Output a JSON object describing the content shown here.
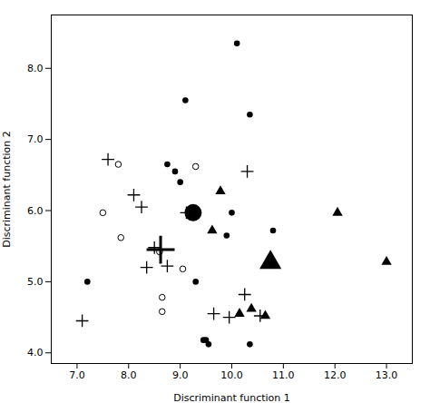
{
  "chart_data": {
    "type": "scatter",
    "xlabel": "Discriminant function 1",
    "ylabel": "Discriminant function 2",
    "xlim": [
      6.5,
      13.5
    ],
    "ylim": [
      3.85,
      8.75
    ],
    "xticks": [
      7,
      8,
      9,
      10,
      11,
      12,
      13
    ],
    "yticks": [
      4,
      5,
      6,
      7,
      8
    ],
    "grid": false,
    "series": [
      {
        "marker": "circle",
        "color": "#000000",
        "x": [
          7.2,
          8.75,
          8.9,
          9.0,
          9.1,
          9.3,
          9.45,
          9.5,
          10.1,
          10.35,
          9.55,
          10.35,
          10.8,
          10.0,
          9.9
        ],
        "values": [
          5.0,
          6.65,
          6.55,
          6.4,
          7.55,
          5.0,
          4.18,
          4.18,
          8.35,
          7.35,
          4.12,
          4.12,
          5.72,
          5.97,
          5.65
        ]
      },
      {
        "marker": "big-circle",
        "color": "#000000",
        "x": [
          9.25
        ],
        "values": [
          5.97
        ]
      },
      {
        "marker": "open-circle",
        "color": "#000000",
        "x": [
          7.8,
          7.5,
          7.85,
          8.6,
          9.3,
          9.05,
          8.65,
          8.65
        ],
        "values": [
          6.65,
          5.97,
          5.62,
          5.42,
          6.62,
          5.18,
          4.78,
          4.58
        ]
      },
      {
        "marker": "plus",
        "color": "#000000",
        "x": [
          7.1,
          7.6,
          8.1,
          8.25,
          8.5,
          8.35,
          8.75,
          9.12,
          9.65,
          9.95,
          10.25,
          10.55,
          10.3
        ],
        "values": [
          4.45,
          6.72,
          6.22,
          6.05,
          5.48,
          5.2,
          5.22,
          5.97,
          4.55,
          4.5,
          4.82,
          4.52,
          6.55
        ]
      },
      {
        "marker": "bold-plus",
        "color": "#000000",
        "x": [
          8.62
        ],
        "values": [
          5.45
        ]
      },
      {
        "marker": "triangle",
        "color": "#000000",
        "x": [
          9.78,
          9.62,
          10.15,
          10.38,
          10.65,
          12.05,
          13.0
        ],
        "values": [
          6.27,
          5.72,
          4.55,
          4.62,
          4.52,
          5.97,
          5.28
        ]
      },
      {
        "marker": "big-triangle",
        "color": "#000000",
        "x": [
          10.75
        ],
        "values": [
          5.27
        ]
      }
    ]
  }
}
